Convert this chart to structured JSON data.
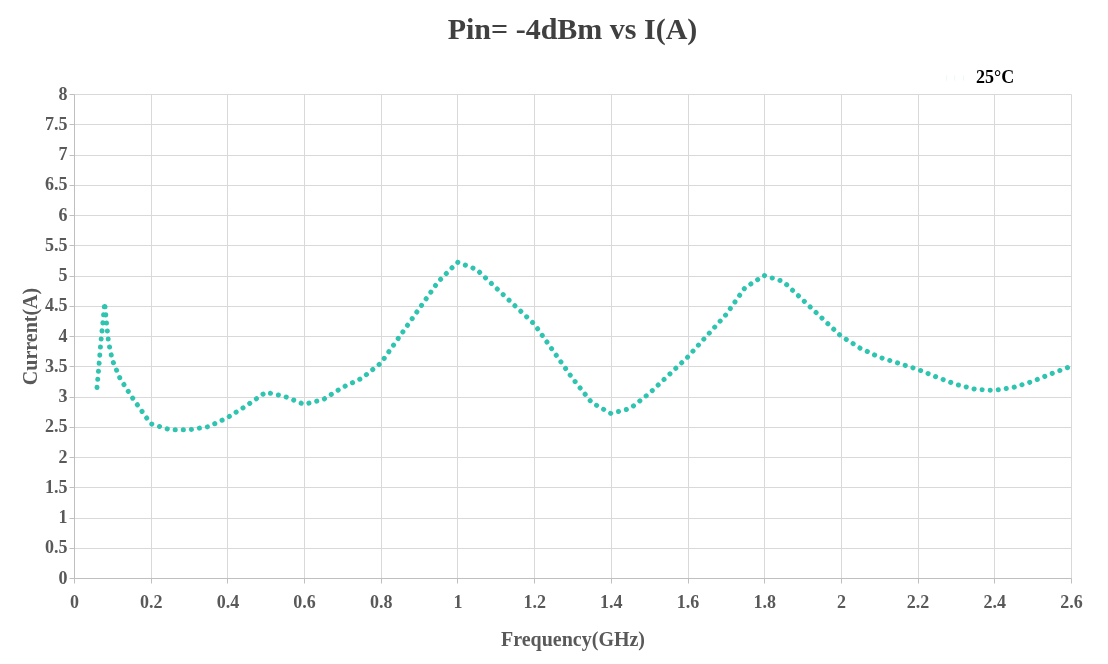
{
  "chart_data": {
    "type": "line",
    "title": "Pin= -4dBm vs I(A)",
    "xlabel": "Frequency(GHz)",
    "ylabel": "Current(A)",
    "xlim": [
      0,
      2.6
    ],
    "xticks": [
      0,
      0.2,
      0.4,
      0.6,
      0.8,
      1,
      1.2,
      1.4,
      1.6,
      1.8,
      2,
      2.2,
      2.4,
      2.6
    ],
    "ylim": [
      0,
      8
    ],
    "yticks": [
      0,
      0.5,
      1,
      1.5,
      2,
      2.5,
      3,
      3.5,
      4,
      4.5,
      5,
      5.5,
      6,
      6.5,
      7,
      7.5,
      8
    ],
    "grid": true,
    "legend": "top right",
    "marker": "none",
    "line_style": "dotted",
    "x": [
      0.06,
      0.065,
      0.07,
      0.075,
      0.08,
      0.085,
      0.09,
      0.1,
      0.12,
      0.15,
      0.2,
      0.25,
      0.3,
      0.35,
      0.4,
      0.45,
      0.5,
      0.55,
      0.6,
      0.65,
      0.7,
      0.75,
      0.8,
      0.85,
      0.9,
      0.95,
      1.0,
      1.05,
      1.1,
      1.15,
      1.2,
      1.25,
      1.3,
      1.35,
      1.4,
      1.45,
      1.5,
      1.55,
      1.6,
      1.65,
      1.7,
      1.75,
      1.8,
      1.85,
      1.9,
      1.95,
      2.0,
      2.05,
      2.1,
      2.15,
      2.2,
      2.25,
      2.3,
      2.35,
      2.4,
      2.45,
      2.5,
      2.55,
      2.6
    ],
    "series": [
      {
        "name": "25°C",
        "color": "#2ec4b0",
        "values": [
          3.15,
          3.5,
          3.9,
          4.2,
          4.55,
          4.2,
          3.9,
          3.6,
          3.3,
          3.0,
          2.55,
          2.45,
          2.45,
          2.5,
          2.65,
          2.85,
          3.07,
          3.0,
          2.87,
          2.95,
          3.15,
          3.3,
          3.55,
          4.0,
          4.45,
          4.9,
          5.22,
          5.1,
          4.8,
          4.5,
          4.2,
          3.75,
          3.3,
          2.9,
          2.72,
          2.8,
          3.05,
          3.35,
          3.65,
          4.0,
          4.35,
          4.8,
          5.0,
          4.9,
          4.6,
          4.3,
          4.0,
          3.8,
          3.65,
          3.55,
          3.45,
          3.32,
          3.2,
          3.12,
          3.1,
          3.15,
          3.25,
          3.38,
          3.5
        ]
      }
    ]
  }
}
